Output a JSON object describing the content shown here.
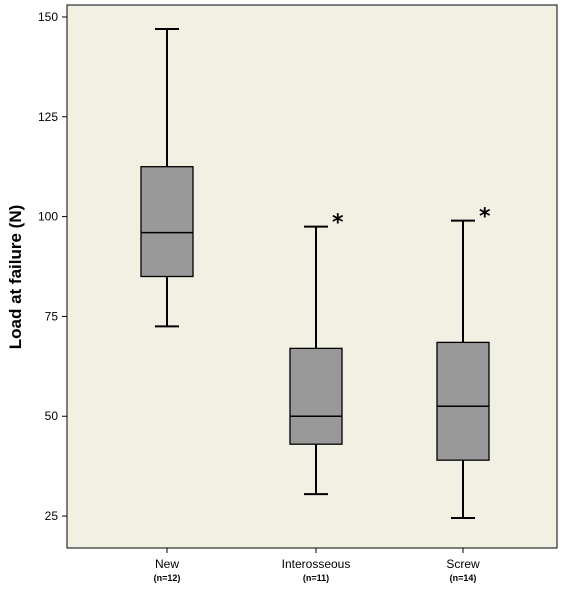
{
  "chart_data": {
    "type": "boxplot",
    "title": "",
    "xlabel": "",
    "ylabel": "Load at failure (N)",
    "ylim": [
      17,
      153
    ],
    "yticks": [
      "25",
      "50",
      "75",
      "100",
      "125",
      "150"
    ],
    "grid": false,
    "colors": {
      "plot_bg": "#f2f0e3",
      "box_fill": "#999999",
      "stroke": "#000000"
    },
    "groups": [
      {
        "name": "New",
        "n_label": "(n=12)",
        "whisker_low": 72.5,
        "q1": 85,
        "median": 96,
        "q3": 112.5,
        "whisker_high": 147,
        "annotation": ""
      },
      {
        "name": "Interosseous",
        "n_label": "(n=11)",
        "whisker_low": 30.5,
        "q1": 43,
        "median": 50,
        "q3": 67,
        "whisker_high": 97.5,
        "annotation": "*"
      },
      {
        "name": "Screw",
        "n_label": "(n=14)",
        "whisker_low": 24.5,
        "q1": 39,
        "median": 52.5,
        "q3": 68.5,
        "whisker_high": 99,
        "annotation": "*"
      }
    ]
  }
}
